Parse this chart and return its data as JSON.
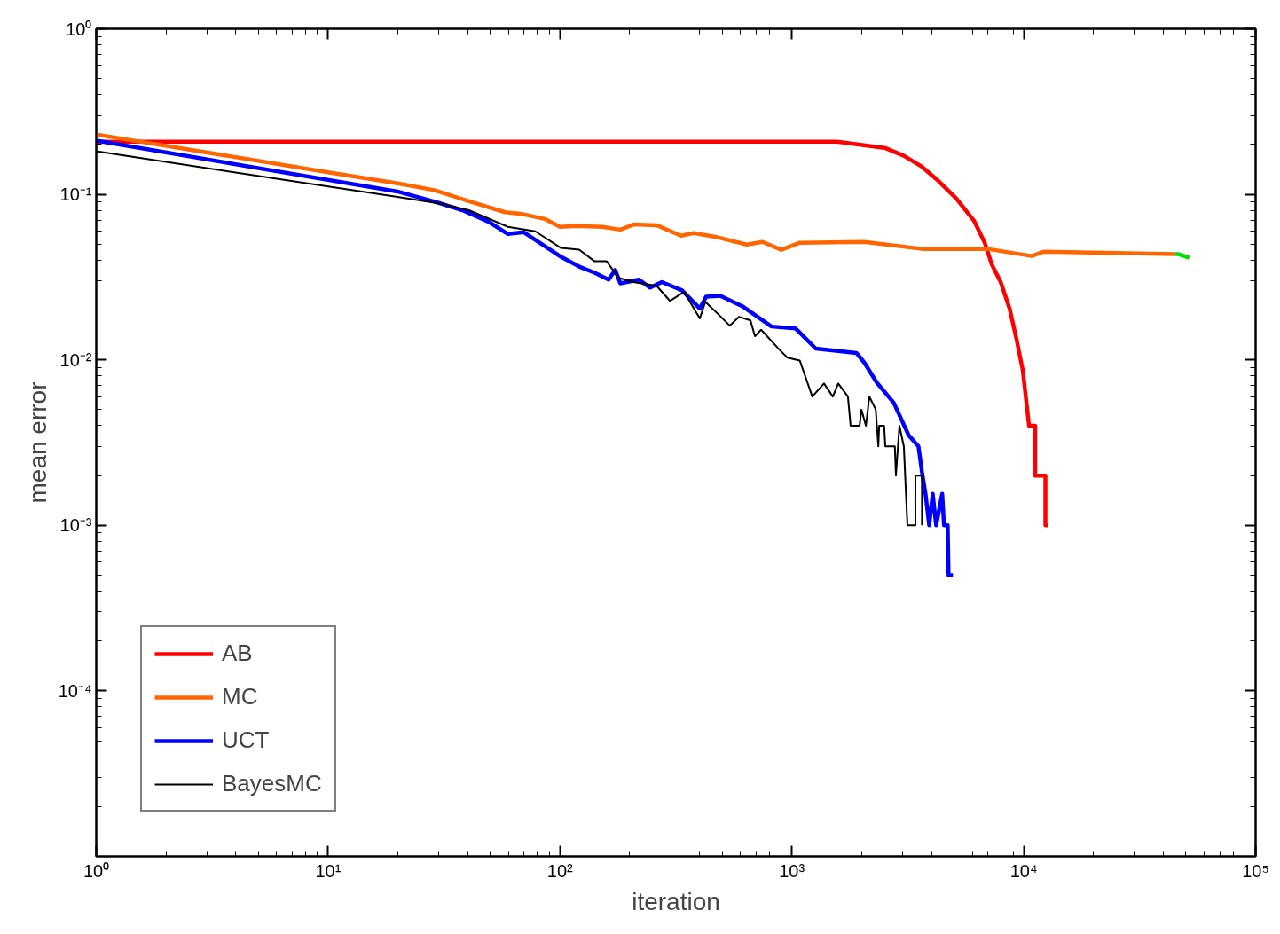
{
  "chart_data": {
    "type": "line",
    "xlabel": "iteration",
    "ylabel": "mean error",
    "log": "xy",
    "grid": false,
    "legend": "bottom left",
    "marker": "none",
    "line_style": "solid",
    "xlim": [
      1,
      100000
    ],
    "ylim": [
      1e-05,
      1
    ],
    "xticks": [
      {
        "value": 1,
        "label": "10⁰"
      },
      {
        "value": 10,
        "label": "10¹"
      },
      {
        "value": 100,
        "label": "10²"
      },
      {
        "value": 1000,
        "label": "10³"
      },
      {
        "value": 10000,
        "label": "10⁴"
      },
      {
        "value": 100000,
        "label": "10⁵"
      }
    ],
    "yticks": [
      {
        "value": 0.0001,
        "label": "10⁻⁴"
      },
      {
        "value": 0.001,
        "label": "10⁻³"
      },
      {
        "value": 0.01,
        "label": "10⁻²"
      },
      {
        "value": 0.1,
        "label": "10⁻¹"
      },
      {
        "value": 1,
        "label": "10⁰"
      }
    ],
    "series": [
      {
        "name": "AB",
        "color": "#ff0000",
        "x": [
          1,
          1570,
          2150,
          2540,
          3040,
          3610,
          4300,
          5130,
          6110,
          6790,
          7290,
          7960,
          8690,
          9310,
          9910,
          10540,
          11200,
          11200,
          12400,
          12400,
          12700
        ],
        "values": [
          0.208,
          0.208,
          0.196,
          0.19,
          0.171,
          0.148,
          0.12,
          0.094,
          0.069,
          0.051,
          0.0375,
          0.0294,
          0.0204,
          0.0133,
          0.0086,
          0.004,
          0.004,
          0.002,
          0.002,
          0.001,
          0.001
        ]
      },
      {
        "name": "MC",
        "color": "#ff6600",
        "x": [
          1,
          10,
          20.2,
          28.7,
          40.8,
          58,
          69,
          86,
          100,
          117,
          152,
          182,
          209,
          261,
          333,
          377,
          462,
          639,
          748,
          900,
          1082,
          2056,
          3640,
          6980,
          10820,
          12250,
          44980
        ],
        "values": [
          0.23,
          0.136,
          0.116,
          0.106,
          0.0906,
          0.078,
          0.076,
          0.071,
          0.0636,
          0.0645,
          0.0636,
          0.0612,
          0.0659,
          0.0651,
          0.0562,
          0.0583,
          0.0556,
          0.0497,
          0.0516,
          0.0462,
          0.051,
          0.0516,
          0.0468,
          0.0468,
          0.0424,
          0.0451,
          0.0435
        ]
      },
      {
        "name": "UCT",
        "color": "#0000ff",
        "x": [
          1,
          19.9,
          29.5,
          38.7,
          49.1,
          59.6,
          69.8,
          101,
          121,
          141,
          162,
          173,
          182,
          219,
          245,
          275,
          336,
          401,
          427,
          491,
          611,
          817,
          1036,
          1268,
          1900,
          2056,
          2323,
          2750,
          3190,
          3515,
          3640,
          3770,
          3910,
          4050,
          4190,
          4450,
          4530,
          4700,
          4740,
          4950
        ],
        "values": [
          0.211,
          0.104,
          0.0895,
          0.0793,
          0.0684,
          0.0576,
          0.059,
          0.0419,
          0.0366,
          0.0336,
          0.0305,
          0.0349,
          0.029,
          0.0305,
          0.0273,
          0.0295,
          0.0263,
          0.0204,
          0.0241,
          0.0244,
          0.0211,
          0.0159,
          0.0155,
          0.0117,
          0.011,
          0.0096,
          0.0073,
          0.0055,
          0.0035,
          0.003,
          0.0021,
          0.00155,
          0.001,
          0.00155,
          0.001,
          0.00155,
          0.001,
          0.001,
          0.0005,
          0.0005
        ]
      },
      {
        "name": "BayesMC",
        "color": "#000000",
        "x": [
          1,
          19.9,
          29.5,
          40.5,
          59.6,
          78.2,
          101,
          121,
          141,
          159,
          179,
          210,
          261,
          298,
          343,
          401,
          423,
          481,
          540,
          591,
          663,
          693,
          737,
          885,
          957,
          1082,
          1225,
          1376,
          1502,
          1585,
          1745,
          1792,
          1960,
          1995,
          2086,
          2160,
          2300,
          2360,
          2380,
          2500,
          2530,
          2780,
          2810,
          2910,
          3040,
          3150,
          3410,
          3410,
          3640,
          3640
        ],
        "values": [
          0.182,
          0.0964,
          0.0885,
          0.0802,
          0.0636,
          0.0598,
          0.0474,
          0.0463,
          0.0394,
          0.0394,
          0.0313,
          0.0294,
          0.028,
          0.0227,
          0.0257,
          0.0178,
          0.0224,
          0.0189,
          0.0161,
          0.0182,
          0.0173,
          0.0139,
          0.0152,
          0.0115,
          0.0103,
          0.0099,
          0.006,
          0.0072,
          0.006,
          0.0072,
          0.006,
          0.004,
          0.004,
          0.005,
          0.004,
          0.006,
          0.005,
          0.003,
          0.004,
          0.004,
          0.003,
          0.003,
          0.002,
          0.004,
          0.003,
          0.001,
          0.001,
          0.002,
          0.002,
          0.001
        ]
      },
      {
        "color": "#00dd00",
        "x": [
          44980,
          46560,
          51760
        ],
        "values": [
          0.0435,
          0.0435,
          0.0414
        ]
      }
    ]
  }
}
